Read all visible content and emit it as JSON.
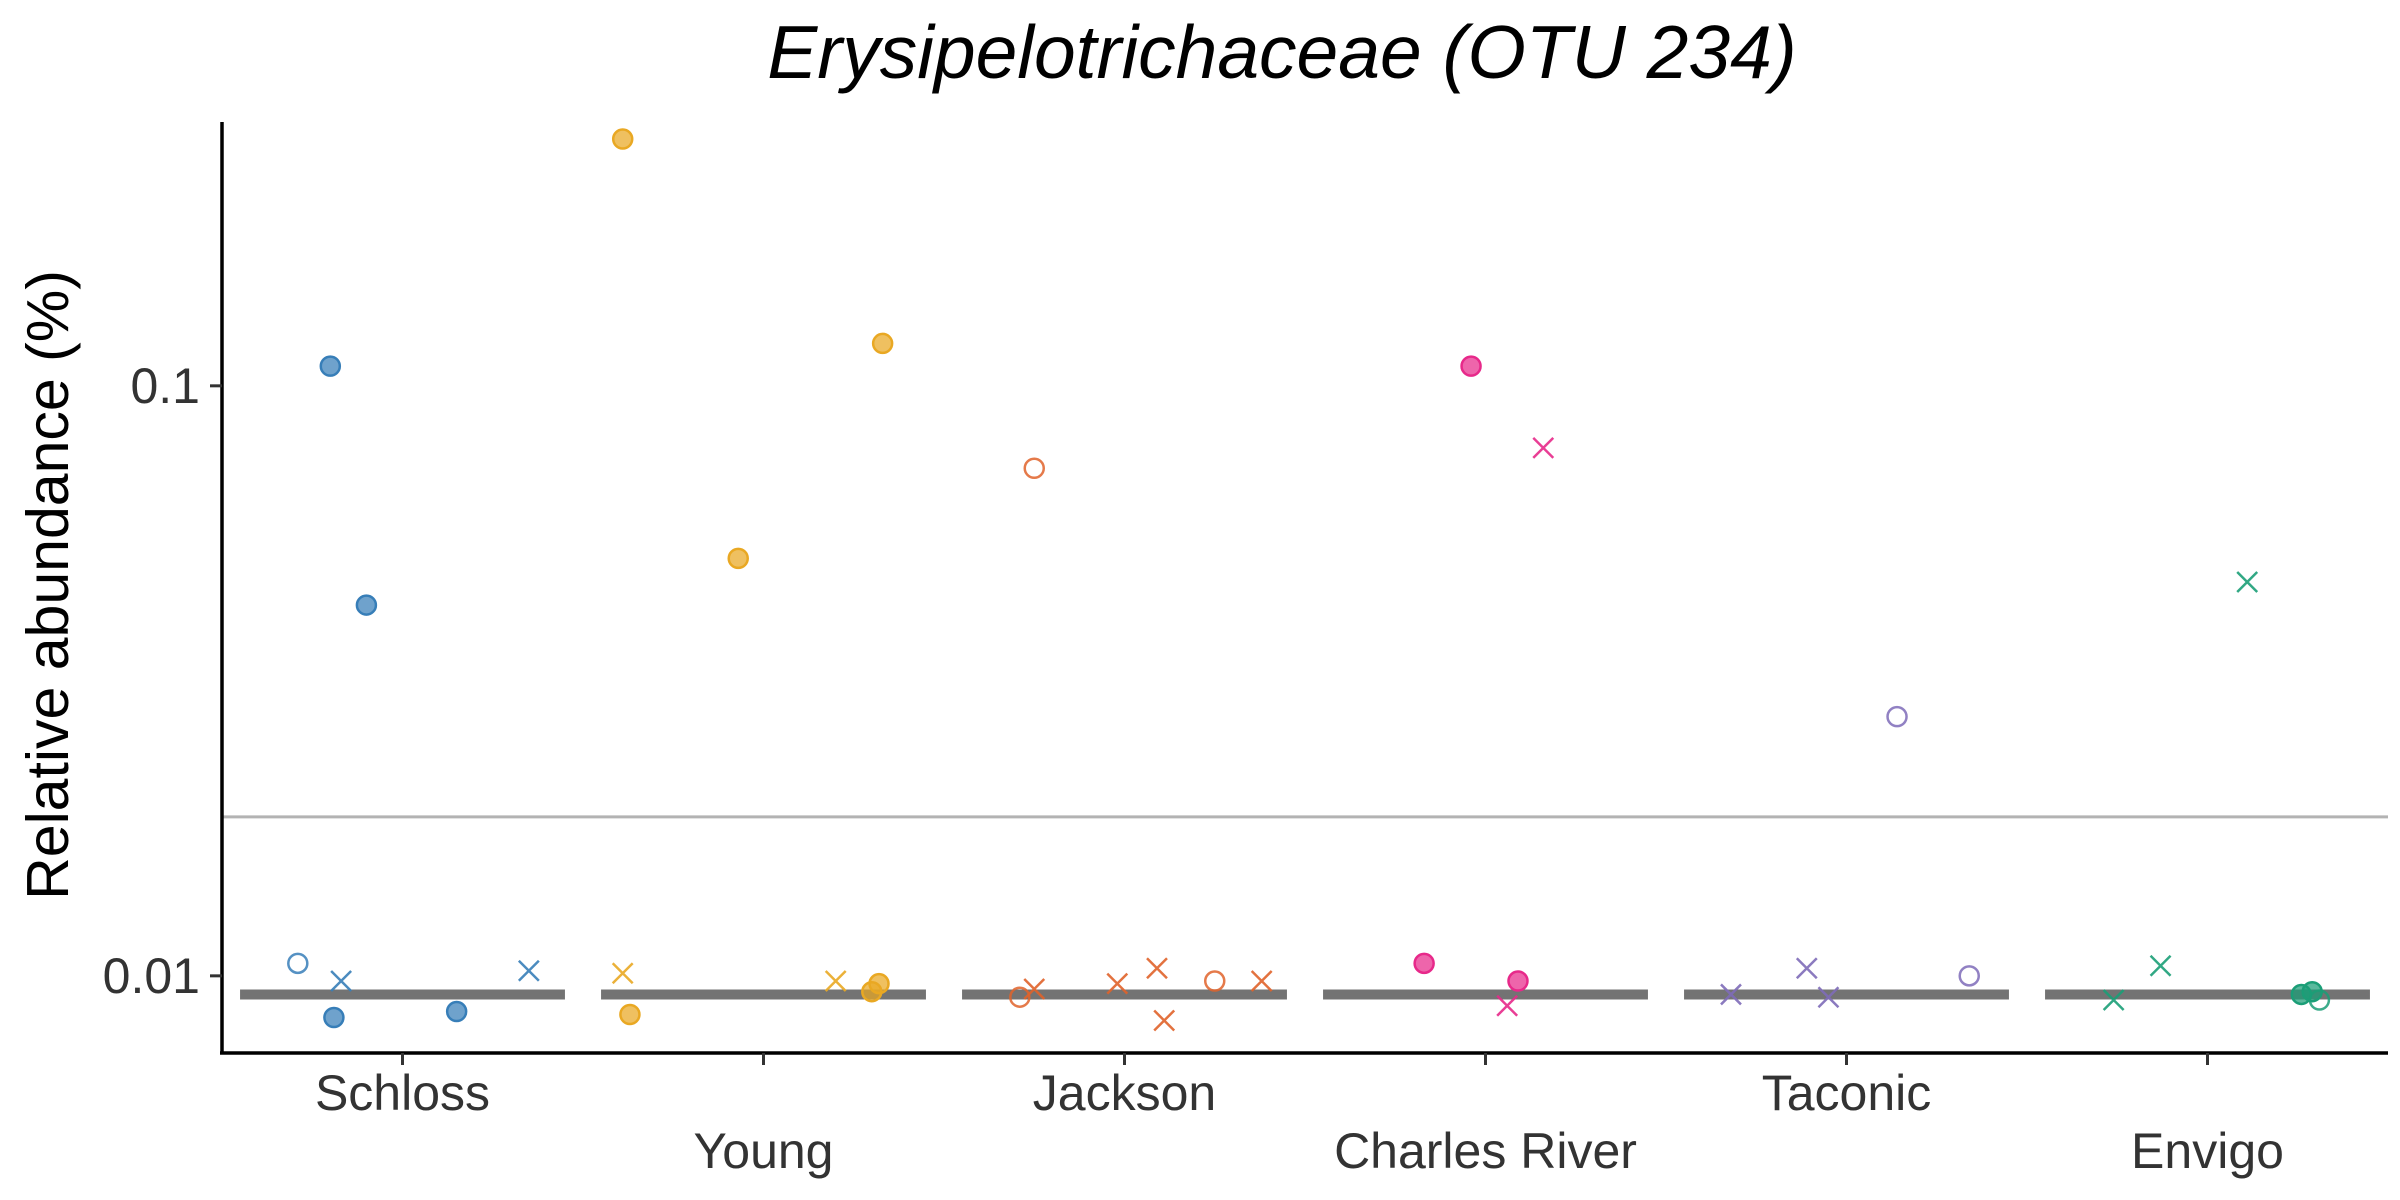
{
  "chart_data": {
    "type": "scatter",
    "title": "Erysipelotrichaceae (OTU 234)",
    "xlabel": "",
    "ylabel": "Relative abundance (%)",
    "y_scale": "log",
    "ylim": [
      0.0074,
      0.28
    ],
    "yticks": [
      {
        "value": 0.1,
        "label": "0.1"
      },
      {
        "value": 0.01,
        "label": "0.01"
      }
    ],
    "limit_of_detection": 0.0186,
    "median_level": 0.0093,
    "grid": false,
    "legend": "none",
    "categories": [
      "Schloss",
      "Young",
      "Jackson",
      "Charles River",
      "Taconic",
      "Envigo"
    ],
    "colors": [
      "#377EB8",
      "#E9A823",
      "#E0632A",
      "#E7298A",
      "#7E6BB8",
      "#1B9E77"
    ],
    "marker_legend": {
      "circle-filled": "filled circle",
      "circle-open": "open circle",
      "cross": "x"
    },
    "series": [
      {
        "category": "Schloss",
        "points": [
          {
            "x": -0.2,
            "y": 0.108,
            "shape": "circle-filled"
          },
          {
            "x": -0.1,
            "y": 0.0425,
            "shape": "circle-filled"
          },
          {
            "x": -0.19,
            "y": 0.0085,
            "shape": "circle-filled"
          },
          {
            "x": 0.15,
            "y": 0.0087,
            "shape": "circle-filled"
          },
          {
            "x": -0.29,
            "y": 0.0105,
            "shape": "circle-open"
          },
          {
            "x": -0.17,
            "y": 0.0098,
            "shape": "cross"
          },
          {
            "x": 0.35,
            "y": 0.0102,
            "shape": "cross"
          }
        ]
      },
      {
        "category": "Young",
        "points": [
          {
            "x": -0.39,
            "y": 0.262,
            "shape": "circle-filled"
          },
          {
            "x": 0.33,
            "y": 0.118,
            "shape": "circle-filled"
          },
          {
            "x": -0.07,
            "y": 0.051,
            "shape": "circle-filled"
          },
          {
            "x": -0.37,
            "y": 0.0086,
            "shape": "circle-filled"
          },
          {
            "x": 0.32,
            "y": 0.0097,
            "shape": "circle-filled"
          },
          {
            "x": 0.3,
            "y": 0.0094,
            "shape": "circle-filled"
          },
          {
            "x": -0.39,
            "y": 0.0101,
            "shape": "cross"
          },
          {
            "x": 0.2,
            "y": 0.0098,
            "shape": "cross"
          }
        ]
      },
      {
        "category": "Jackson",
        "points": [
          {
            "x": -0.25,
            "y": 0.0725,
            "shape": "circle-open"
          },
          {
            "x": -0.29,
            "y": 0.0092,
            "shape": "circle-open"
          },
          {
            "x": 0.25,
            "y": 0.0098,
            "shape": "circle-open"
          },
          {
            "x": -0.25,
            "y": 0.0095,
            "shape": "cross"
          },
          {
            "x": -0.02,
            "y": 0.0097,
            "shape": "cross"
          },
          {
            "x": 0.09,
            "y": 0.0103,
            "shape": "cross"
          },
          {
            "x": 0.11,
            "y": 0.0084,
            "shape": "cross"
          },
          {
            "x": 0.38,
            "y": 0.0098,
            "shape": "cross"
          }
        ]
      },
      {
        "category": "Charles River",
        "points": [
          {
            "x": -0.04,
            "y": 0.108,
            "shape": "circle-filled"
          },
          {
            "x": -0.17,
            "y": 0.0105,
            "shape": "circle-filled"
          },
          {
            "x": 0.09,
            "y": 0.0098,
            "shape": "circle-filled"
          },
          {
            "x": 0.16,
            "y": 0.0785,
            "shape": "cross"
          },
          {
            "x": 0.06,
            "y": 0.0089,
            "shape": "cross"
          }
        ]
      },
      {
        "category": "Taconic",
        "points": [
          {
            "x": 0.14,
            "y": 0.0275,
            "shape": "circle-open"
          },
          {
            "x": 0.34,
            "y": 0.01,
            "shape": "circle-open"
          },
          {
            "x": -0.32,
            "y": 0.0093,
            "shape": "cross"
          },
          {
            "x": -0.11,
            "y": 0.0103,
            "shape": "cross"
          },
          {
            "x": -0.05,
            "y": 0.0092,
            "shape": "cross"
          }
        ]
      },
      {
        "category": "Envigo",
        "points": [
          {
            "x": 0.11,
            "y": 0.0465,
            "shape": "cross"
          },
          {
            "x": -0.13,
            "y": 0.0104,
            "shape": "cross"
          },
          {
            "x": -0.26,
            "y": 0.0091,
            "shape": "cross"
          },
          {
            "x": 0.26,
            "y": 0.0093,
            "shape": "circle-filled"
          },
          {
            "x": 0.29,
            "y": 0.0094,
            "shape": "circle-filled"
          },
          {
            "x": 0.31,
            "y": 0.0091,
            "shape": "circle-open"
          }
        ]
      }
    ]
  }
}
